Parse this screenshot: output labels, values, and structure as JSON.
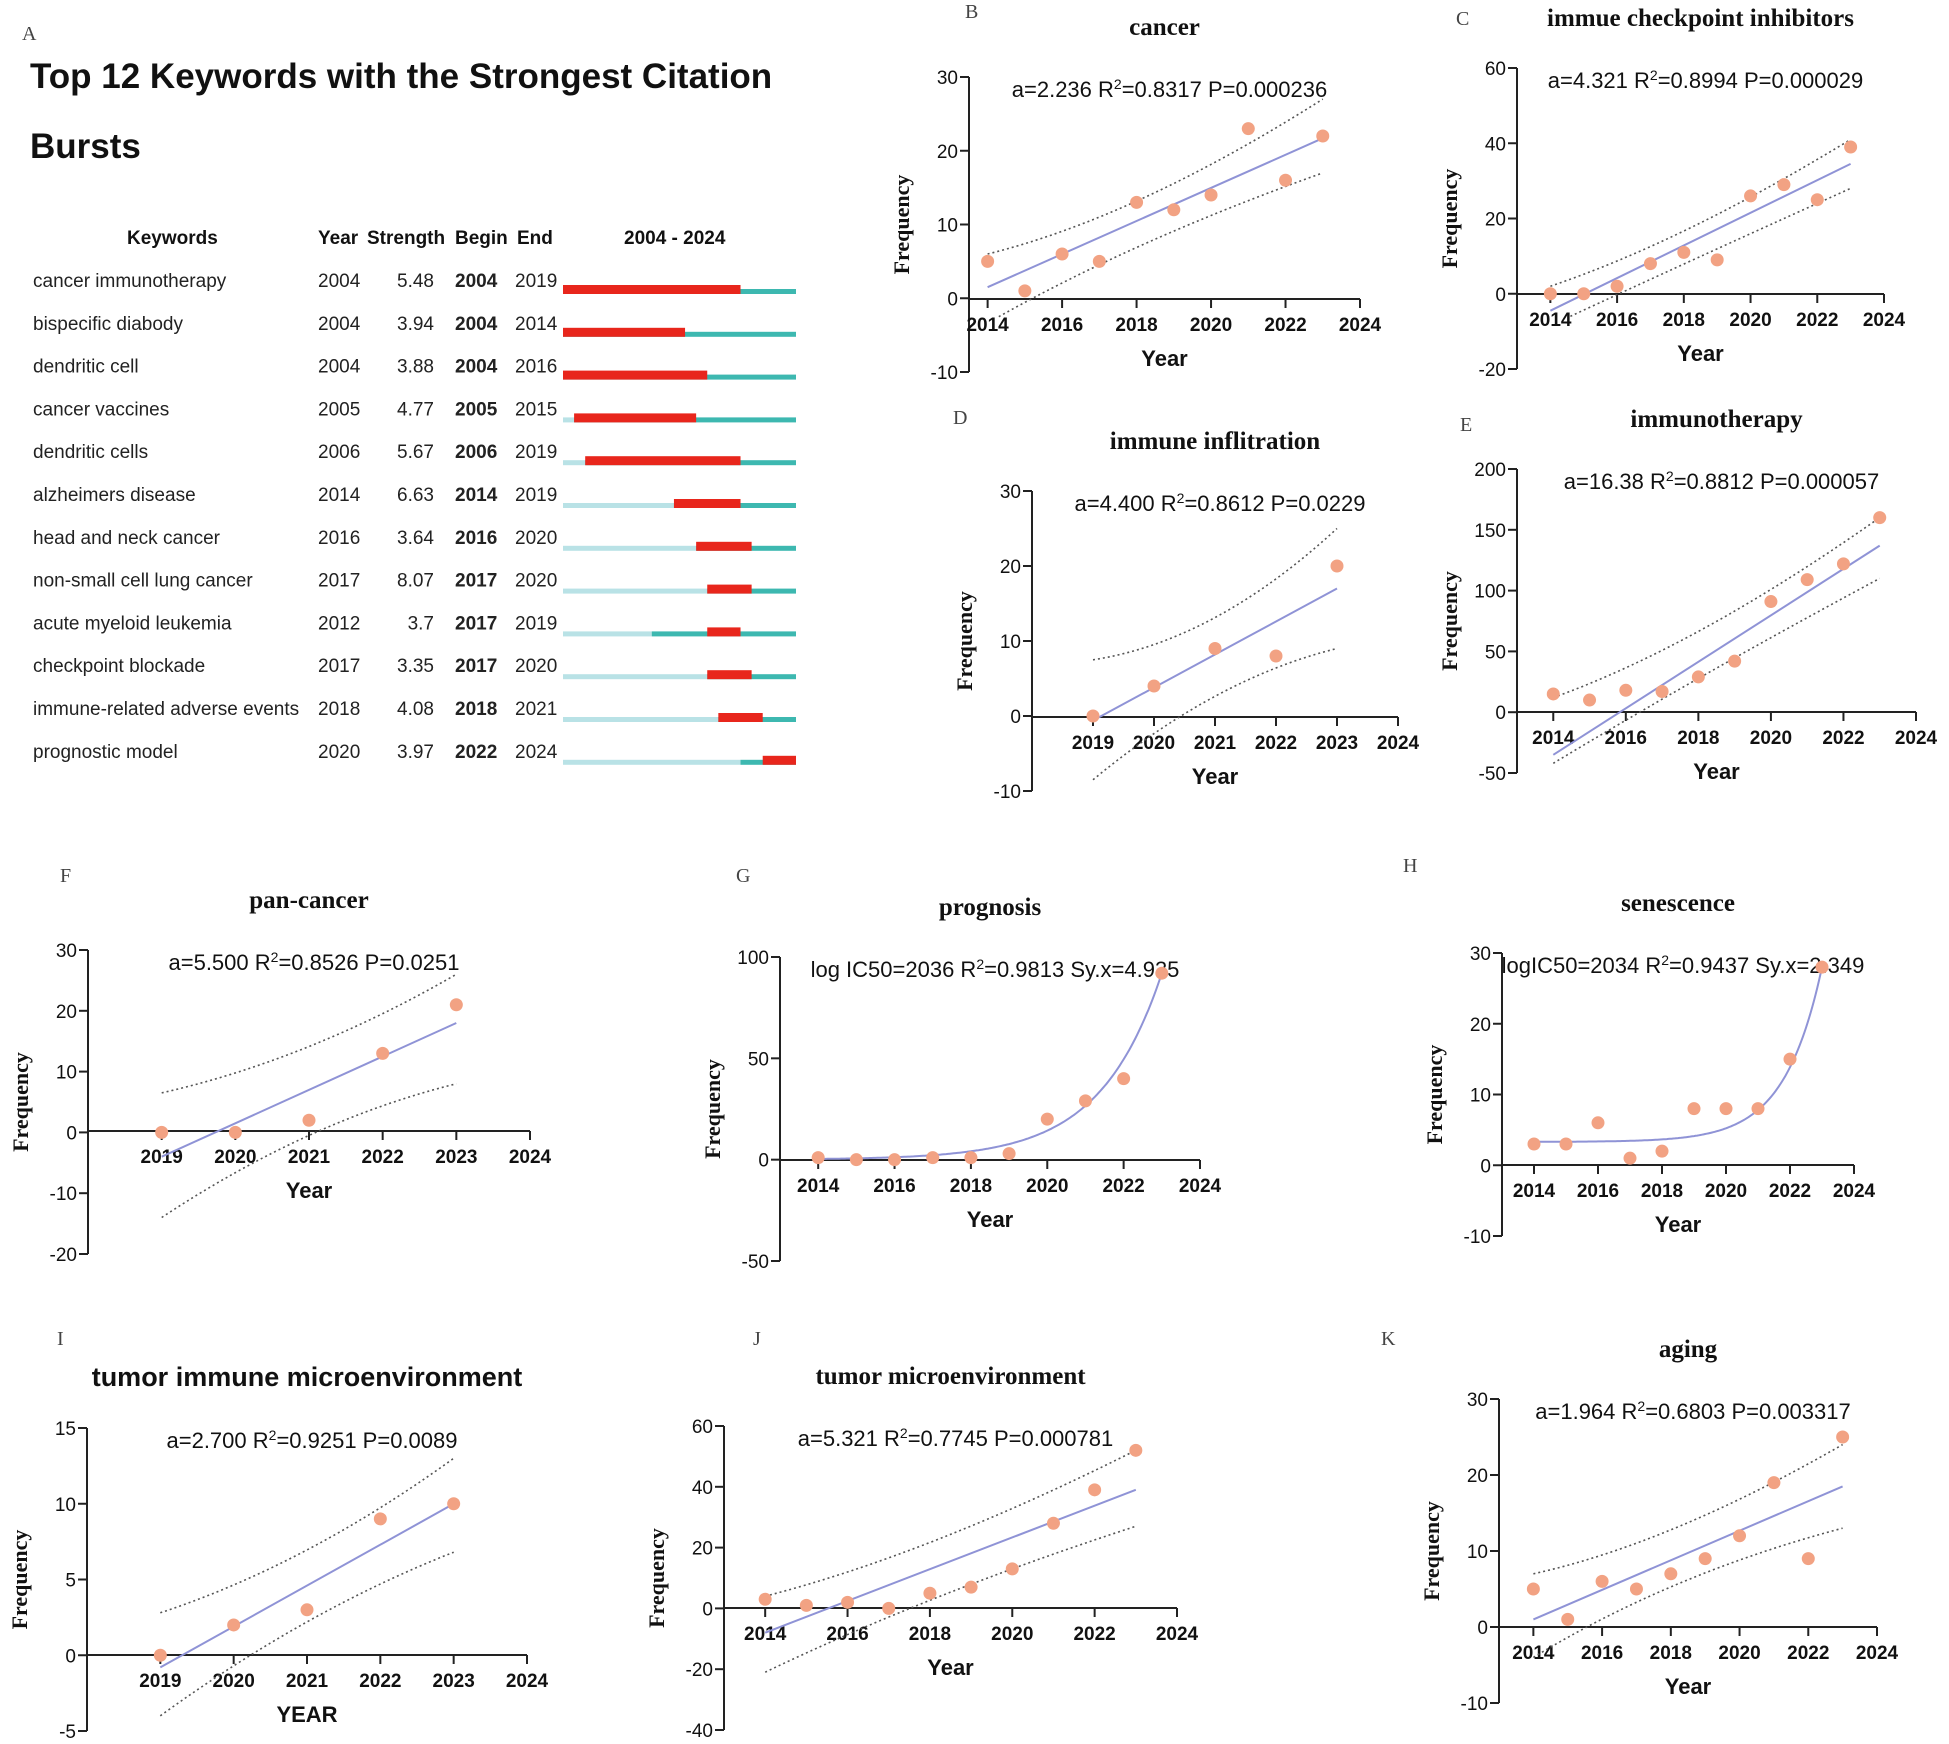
{
  "colors": {
    "burst": "#e8261c",
    "active": "#3db8b0",
    "inactive": "#b9e2e6",
    "point": "#f2a283",
    "fit": "#8f93d6",
    "band": "#555555",
    "axis": "#222222"
  },
  "burst_table": {
    "panel_letter": "A",
    "title_line1": "Top 12 Keywords with the Strongest Citation",
    "title_line2": "Bursts",
    "headers": {
      "keywords": "Keywords",
      "year": "Year",
      "strength": "Strength",
      "begin": "Begin",
      "end": "End",
      "range": "2004 - 2024"
    },
    "range_start": 2004,
    "range_end": 2024,
    "rows": [
      {
        "keyword": "cancer immunotherapy",
        "year": "2004",
        "strength": "5.48",
        "begin": "2004",
        "end": "2019",
        "y": 2004,
        "b": 2004,
        "e": 2019
      },
      {
        "keyword": "bispecific diabody",
        "year": "2004",
        "strength": "3.94",
        "begin": "2004",
        "end": "2014",
        "y": 2004,
        "b": 2004,
        "e": 2014
      },
      {
        "keyword": "dendritic cell",
        "year": "2004",
        "strength": "3.88",
        "begin": "2004",
        "end": "2016",
        "y": 2004,
        "b": 2004,
        "e": 2016
      },
      {
        "keyword": "cancer vaccines",
        "year": "2005",
        "strength": "4.77",
        "begin": "2005",
        "end": "2015",
        "y": 2005,
        "b": 2005,
        "e": 2015
      },
      {
        "keyword": "dendritic cells",
        "year": "2006",
        "strength": "5.67",
        "begin": "2006",
        "end": "2019",
        "y": 2006,
        "b": 2006,
        "e": 2019
      },
      {
        "keyword": "alzheimers disease",
        "year": "2014",
        "strength": "6.63",
        "begin": "2014",
        "end": "2019",
        "y": 2014,
        "b": 2014,
        "e": 2019
      },
      {
        "keyword": "head and neck cancer",
        "year": "2016",
        "strength": "3.64",
        "begin": "2016",
        "end": "2020",
        "y": 2016,
        "b": 2016,
        "e": 2020
      },
      {
        "keyword": "non-small cell lung cancer",
        "year": "2017",
        "strength": "8.07",
        "begin": "2017",
        "end": "2020",
        "y": 2017,
        "b": 2017,
        "e": 2020
      },
      {
        "keyword": "acute myeloid leukemia",
        "year": "2012",
        "strength": "3.7",
        "begin": "2017",
        "end": "2019",
        "y": 2012,
        "b": 2017,
        "e": 2019
      },
      {
        "keyword": "checkpoint blockade",
        "year": "2017",
        "strength": "3.35",
        "begin": "2017",
        "end": "2020",
        "y": 2017,
        "b": 2017,
        "e": 2020
      },
      {
        "keyword": "immune-related adverse events",
        "year": "2018",
        "strength": "4.08",
        "begin": "2018",
        "end": "2021",
        "y": 2018,
        "b": 2018,
        "e": 2021
      },
      {
        "keyword": "prognostic model",
        "year": "2020",
        "strength": "3.97",
        "begin": "2022",
        "end": "2024",
        "y": 2020,
        "b": 2022,
        "e": 2024
      }
    ]
  },
  "chart_data": [
    {
      "id": "B",
      "type": "scatter",
      "fit": "linear",
      "title": "cancer",
      "title_font": "serif",
      "annotation": {
        "pre": "a=2.236 R",
        "sup": "2",
        "post": "=0.8317 P=0.000236"
      },
      "xlabel": "Year",
      "ylabel": "Frequency",
      "x_ticks": [
        2014,
        2016,
        2018,
        2020,
        2022,
        2024
      ],
      "y_ticks": [
        -10,
        0,
        10,
        20,
        30
      ],
      "xlim": [
        2013.5,
        2024
      ],
      "ylim": [
        -10,
        30
      ],
      "x": [
        2014,
        2015,
        2016,
        2017,
        2018,
        2019,
        2020,
        2021,
        2022,
        2023
      ],
      "y": [
        5,
        1,
        6,
        5,
        13,
        12,
        14,
        23,
        16,
        22
      ],
      "fit_line": [
        [
          2014,
          1.5
        ],
        [
          2023,
          21.7
        ]
      ],
      "band_upper": [
        [
          2014,
          6
        ],
        [
          2018,
          11
        ],
        [
          2023,
          27
        ]
      ],
      "band_lower": [
        [
          2014.3,
          -2.5
        ],
        [
          2018,
          8
        ],
        [
          2023,
          17
        ]
      ]
    },
    {
      "id": "C",
      "type": "scatter",
      "fit": "linear",
      "title": "immue checkpoint inhibitors",
      "title_font": "serif",
      "annotation": {
        "pre": "a=4.321 R",
        "sup": "2",
        "post": "=0.8994 P=0.000029"
      },
      "xlabel": "Year",
      "ylabel": "Frequency",
      "x_ticks": [
        2014,
        2016,
        2018,
        2020,
        2022,
        2024
      ],
      "y_ticks": [
        -20,
        0,
        20,
        40,
        60
      ],
      "xlim": [
        2013,
        2024
      ],
      "ylim": [
        -20,
        60
      ],
      "x": [
        2014,
        2015,
        2016,
        2017,
        2018,
        2019,
        2020,
        2021,
        2022,
        2023
      ],
      "y": [
        0,
        0,
        2,
        8,
        11,
        9,
        26,
        29,
        25,
        39
      ],
      "fit_line": [
        [
          2014,
          -4.5
        ],
        [
          2023,
          34.5
        ]
      ],
      "band_upper": [
        [
          2014,
          2
        ],
        [
          2018,
          14
        ],
        [
          2023,
          41
        ]
      ],
      "band_lower": [
        [
          2014.6,
          -6
        ],
        [
          2018,
          8
        ],
        [
          2023,
          28
        ]
      ]
    },
    {
      "id": "D",
      "type": "scatter",
      "fit": "linear",
      "title": "immune inflitration",
      "title_font": "serif",
      "annotation": {
        "pre": "a=4.400 R",
        "sup": "2",
        "post": "=0.8612 P=0.0229"
      },
      "xlabel": "Year",
      "ylabel": "Frequency",
      "x_ticks": [
        2019,
        2020,
        2021,
        2022,
        2023,
        2024
      ],
      "y_ticks": [
        -10,
        0,
        10,
        20,
        30
      ],
      "xlim": [
        2018,
        2024
      ],
      "ylim": [
        -10,
        30
      ],
      "x": [
        2019,
        2020,
        2021,
        2022,
        2023
      ],
      "y": [
        0,
        4,
        9,
        8,
        20
      ],
      "fit_line": [
        [
          2019,
          -0.6
        ],
        [
          2023,
          17
        ]
      ],
      "band_upper": [
        [
          2019,
          7.5
        ],
        [
          2021,
          10
        ],
        [
          2023,
          25
        ]
      ],
      "band_lower": [
        [
          2019,
          -8.5
        ],
        [
          2021,
          5
        ],
        [
          2023,
          9
        ]
      ]
    },
    {
      "id": "E",
      "type": "scatter",
      "fit": "linear",
      "title": "immunotherapy",
      "title_font": "serif",
      "annotation": {
        "pre": "a=16.38 R",
        "sup": "2",
        "post": "=0.8812 P=0.000057"
      },
      "xlabel": "Year",
      "ylabel": "Frequency",
      "x_ticks": [
        2014,
        2016,
        2018,
        2020,
        2022,
        2024
      ],
      "y_ticks": [
        -50,
        0,
        50,
        100,
        150,
        200
      ],
      "xlim": [
        2013,
        2024
      ],
      "ylim": [
        -50,
        200
      ],
      "x": [
        2014,
        2015,
        2016,
        2017,
        2018,
        2019,
        2020,
        2021,
        2022,
        2023
      ],
      "y": [
        15,
        10,
        18,
        17,
        29,
        42,
        91,
        109,
        122,
        160
      ],
      "fit_line": [
        [
          2014,
          -35
        ],
        [
          2023,
          137
        ]
      ],
      "band_upper": [
        [
          2014,
          12
        ],
        [
          2018,
          55
        ],
        [
          2023,
          160
        ]
      ],
      "band_lower": [
        [
          2014,
          -42
        ],
        [
          2018,
          30
        ],
        [
          2023,
          110
        ]
      ]
    },
    {
      "id": "F",
      "type": "scatter",
      "fit": "linear",
      "title": "pan-cancer",
      "title_font": "serif",
      "annotation": {
        "pre": "a=5.500 R",
        "sup": "2",
        "post": "=0.8526 P=0.0251"
      },
      "xlabel": "Year",
      "ylabel": "Frequency",
      "x_ticks": [
        2019,
        2020,
        2021,
        2022,
        2023,
        2024
      ],
      "y_ticks": [
        -20,
        -10,
        0,
        10,
        20,
        30
      ],
      "xlim": [
        2018,
        2024
      ],
      "ylim": [
        -20,
        30
      ],
      "x": [
        2019,
        2020,
        2021,
        2022,
        2023
      ],
      "y": [
        0,
        0,
        2,
        13,
        21
      ],
      "fit_line": [
        [
          2019,
          -4
        ],
        [
          2023,
          18
        ]
      ],
      "band_upper": [
        [
          2019,
          6.5
        ],
        [
          2021,
          12
        ],
        [
          2023,
          26
        ]
      ],
      "band_lower": [
        [
          2019,
          -14
        ],
        [
          2021,
          2
        ],
        [
          2023,
          8
        ]
      ]
    },
    {
      "id": "G",
      "type": "scatter",
      "fit": "exponential",
      "title": "prognosis",
      "title_font": "serif",
      "annotation": {
        "pre": "log IC50=2036 R",
        "sup": "2",
        "post": "=0.9813 Sy.x=4.935"
      },
      "xlabel": "Year",
      "ylabel": "Frequency",
      "x_ticks": [
        2014,
        2016,
        2018,
        2020,
        2022,
        2024
      ],
      "y_ticks": [
        -50,
        0,
        50,
        100
      ],
      "xlim": [
        2013,
        2024
      ],
      "ylim": [
        -50,
        100
      ],
      "x": [
        2014,
        2015,
        2016,
        2017,
        2018,
        2019,
        2020,
        2021,
        2022,
        2023
      ],
      "y": [
        1,
        0,
        0,
        1,
        1,
        3,
        20,
        29,
        40,
        92
      ],
      "curve": {
        "base": 0,
        "amp": 92,
        "x0": 2023,
        "k": 0.62
      }
    },
    {
      "id": "H",
      "type": "scatter",
      "fit": "exponential",
      "title": "senescence",
      "title_font": "serif",
      "annotation": {
        "pre": "logIC50=2034 R",
        "sup": "2",
        "post": "=0.9437 Sy.x=2.349"
      },
      "xlabel": "Year",
      "ylabel": "Frequency",
      "x_ticks": [
        2014,
        2016,
        2018,
        2020,
        2022,
        2024
      ],
      "y_ticks": [
        -10,
        0,
        10,
        20,
        30
      ],
      "xlim": [
        2013,
        2024
      ],
      "ylim": [
        -10,
        30
      ],
      "x": [
        2014,
        2015,
        2016,
        2017,
        2018,
        2019,
        2020,
        2021,
        2022,
        2023
      ],
      "y": [
        3,
        3,
        6,
        1,
        2,
        8,
        8,
        8,
        15,
        28
      ],
      "curve": {
        "base": 3.3,
        "amp": 24.7,
        "x0": 2023,
        "k": 0.85
      }
    },
    {
      "id": "I",
      "type": "scatter",
      "fit": "linear",
      "title": "tumor immune microenvironment",
      "title_font": "sans",
      "annotation": {
        "pre": "a=2.700 R",
        "sup": "2",
        "post": "=0.9251 P=0.0089"
      },
      "xlabel": "YEAR",
      "ylabel": "Frequency",
      "x_ticks": [
        2019,
        2020,
        2021,
        2022,
        2023,
        2024
      ],
      "y_ticks": [
        -5,
        0,
        5,
        10,
        15
      ],
      "xlim": [
        2018,
        2024
      ],
      "ylim": [
        -5,
        15
      ],
      "x": [
        2019,
        2020,
        2021,
        2022,
        2023
      ],
      "y": [
        0,
        2,
        3,
        9,
        10
      ],
      "fit_line": [
        [
          2019,
          -0.8
        ],
        [
          2023,
          10
        ]
      ],
      "band_upper": [
        [
          2019,
          2.8
        ],
        [
          2021,
          6
        ],
        [
          2023,
          13
        ]
      ],
      "band_lower": [
        [
          2019,
          -4
        ],
        [
          2021,
          3
        ],
        [
          2023,
          6.8
        ]
      ]
    },
    {
      "id": "J",
      "type": "scatter",
      "fit": "linear",
      "title": "tumor microenvironment",
      "title_font": "serif",
      "annotation": {
        "pre": "a=5.321 R",
        "sup": "2",
        "post": "=0.7745 P=0.000781"
      },
      "xlabel": "Year",
      "ylabel": "Frequency",
      "x_ticks": [
        2014,
        2016,
        2018,
        2020,
        2022,
        2024
      ],
      "y_ticks": [
        -40,
        -20,
        0,
        20,
        40,
        60
      ],
      "xlim": [
        2013,
        2024
      ],
      "ylim": [
        -40,
        60
      ],
      "x": [
        2014,
        2015,
        2016,
        2017,
        2018,
        2019,
        2020,
        2021,
        2022,
        2023
      ],
      "y": [
        3,
        1,
        2,
        0,
        5,
        7,
        13,
        28,
        39,
        52
      ],
      "fit_line": [
        [
          2014,
          -8
        ],
        [
          2023,
          39
        ]
      ],
      "band_upper": [
        [
          2014,
          4
        ],
        [
          2018,
          18
        ],
        [
          2023,
          52
        ]
      ],
      "band_lower": [
        [
          2014,
          -21
        ],
        [
          2018,
          5
        ],
        [
          2023,
          27
        ]
      ]
    },
    {
      "id": "K",
      "type": "scatter",
      "fit": "linear",
      "title": "aging",
      "title_font": "serif",
      "annotation": {
        "pre": "a=1.964 R",
        "sup": "2",
        "post": "=0.6803 P=0.003317"
      },
      "xlabel": "Year",
      "ylabel": "Frequency",
      "x_ticks": [
        2014,
        2016,
        2018,
        2020,
        2022,
        2024
      ],
      "y_ticks": [
        -10,
        0,
        10,
        20,
        30
      ],
      "xlim": [
        2013,
        2024
      ],
      "ylim": [
        -10,
        30
      ],
      "x": [
        2014,
        2015,
        2016,
        2017,
        2018,
        2019,
        2020,
        2021,
        2022,
        2023
      ],
      "y": [
        5,
        1,
        6,
        5,
        7,
        9,
        12,
        19,
        9,
        25
      ],
      "fit_line": [
        [
          2014,
          1
        ],
        [
          2023,
          18.5
        ]
      ],
      "band_upper": [
        [
          2014,
          7
        ],
        [
          2018,
          11
        ],
        [
          2023,
          24
        ]
      ],
      "band_lower": [
        [
          2014,
          -4
        ],
        [
          2018,
          7
        ],
        [
          2023,
          13
        ]
      ]
    }
  ]
}
